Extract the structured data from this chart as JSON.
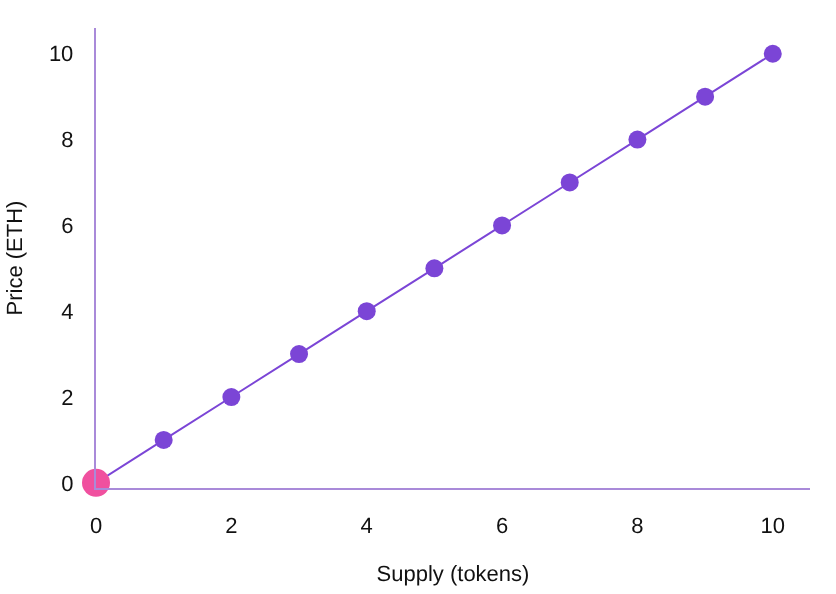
{
  "chart_data": {
    "type": "line",
    "xlabel": "Supply (tokens)",
    "ylabel": "Price (ETH)",
    "xlim": [
      0,
      10.55
    ],
    "ylim": [
      -0.12,
      10.6
    ],
    "xticks": [
      0,
      2,
      4,
      6,
      8,
      10
    ],
    "yticks": [
      0,
      2,
      4,
      6,
      8,
      10
    ],
    "grid": false,
    "marker": "circle",
    "series": [
      {
        "color": "#7b45d6",
        "colors": [
          "#f0509f",
          "#7b45d6",
          "#7b45d6",
          "#7b45d6",
          "#7b45d6",
          "#7b45d6",
          "#7b45d6",
          "#7b45d6",
          "#7b45d6",
          "#7b45d6",
          "#7b45d6"
        ],
        "x": [
          0,
          1,
          2,
          3,
          4,
          5,
          6,
          7,
          8,
          9,
          10
        ],
        "values": [
          0,
          1,
          2,
          3,
          4,
          5,
          6,
          7,
          8,
          9,
          10
        ]
      }
    ]
  }
}
